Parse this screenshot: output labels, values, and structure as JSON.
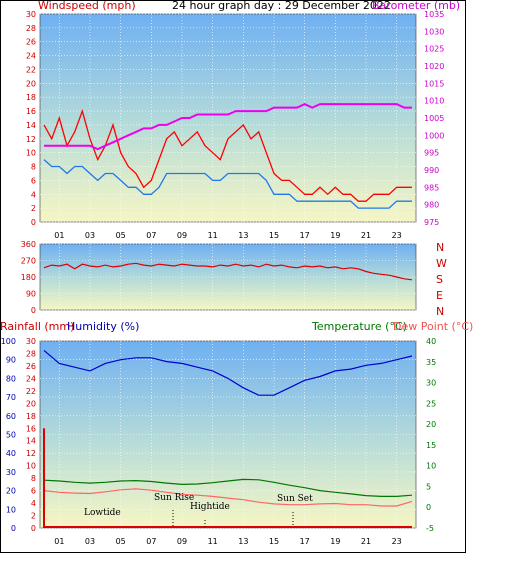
{
  "labels": {
    "title": "24 hour graph day : 29 December 2022",
    "windspeed": "Windspeed (mph)",
    "barometer": "Barometer (mb)",
    "rainfall": "Rainfall (mm)",
    "humidity": "Humidity (%)",
    "temperature": "Temperature (°C)",
    "dewpoint": "Dew Point (°C)",
    "compass": [
      "N",
      "W",
      "S",
      "E",
      "N"
    ]
  },
  "annotations": [
    "Lowtide",
    "Sun Rise",
    "Hightide",
    "Sun Set"
  ],
  "colors": {
    "gust": "#ff0000",
    "average": "#2277ee",
    "barometer": "#ee00ee",
    "direction": "#dd0000",
    "humidity": "#0000cc",
    "temperature": "#007700",
    "dewpoint": "#ff6666",
    "rainfall": "#dd0000"
  },
  "chart_data": [
    {
      "type": "line",
      "title": "24 hour graph day : 29 December 2022",
      "xlabel": "",
      "ylabel": "Windspeed (mph)",
      "y2label": "Barometer (mb)",
      "ylim": [
        0,
        30
      ],
      "y2lim": [
        975,
        1035
      ],
      "x_ticks": [
        "01",
        "03",
        "05",
        "07",
        "09",
        "11",
        "13",
        "15",
        "17",
        "19",
        "21",
        "23"
      ],
      "y_ticks": [
        0,
        2,
        4,
        6,
        8,
        10,
        12,
        14,
        16,
        18,
        20,
        22,
        24,
        26,
        28,
        30
      ],
      "y2_ticks": [
        975,
        980,
        985,
        990,
        995,
        1000,
        1005,
        1010,
        1015,
        1020,
        1025,
        1030,
        1035
      ],
      "x": [
        0,
        0.5,
        1,
        1.5,
        2,
        2.5,
        3,
        3.5,
        4,
        4.5,
        5,
        5.5,
        6,
        6.5,
        7,
        7.5,
        8,
        8.5,
        9,
        9.5,
        10,
        10.5,
        11,
        11.5,
        12,
        12.5,
        13,
        13.5,
        14,
        14.5,
        15,
        15.5,
        16,
        16.5,
        17,
        17.5,
        18,
        18.5,
        19,
        19.5,
        20,
        20.5,
        21,
        21.5,
        22,
        22.5,
        23,
        23.5,
        24
      ],
      "series": [
        {
          "name": "gust",
          "axis": "left",
          "values": [
            14,
            12,
            15,
            11,
            13,
            16,
            12,
            9,
            11,
            14,
            10,
            8,
            7,
            5,
            6,
            9,
            12,
            13,
            11,
            12,
            13,
            11,
            10,
            9,
            12,
            13,
            14,
            12,
            13,
            10,
            7,
            6,
            6,
            5,
            4,
            4,
            5,
            4,
            5,
            4,
            4,
            3,
            3,
            4,
            4,
            4,
            5,
            5,
            5
          ]
        },
        {
          "name": "average",
          "axis": "left",
          "values": [
            9,
            8,
            8,
            7,
            8,
            8,
            7,
            6,
            7,
            7,
            6,
            5,
            5,
            4,
            4,
            5,
            7,
            7,
            7,
            7,
            7,
            7,
            6,
            6,
            7,
            7,
            7,
            7,
            7,
            6,
            4,
            4,
            4,
            3,
            3,
            3,
            3,
            3,
            3,
            3,
            3,
            2,
            2,
            2,
            2,
            2,
            3,
            3,
            3
          ]
        },
        {
          "name": "barometer",
          "axis": "right",
          "values": [
            997,
            997,
            997,
            997,
            997,
            997,
            997,
            996,
            997,
            998,
            999,
            1000,
            1001,
            1002,
            1002,
            1003,
            1003,
            1004,
            1005,
            1005,
            1006,
            1006,
            1006,
            1006,
            1006,
            1007,
            1007,
            1007,
            1007,
            1007,
            1008,
            1008,
            1008,
            1008,
            1009,
            1008,
            1009,
            1009,
            1009,
            1009,
            1009,
            1009,
            1009,
            1009,
            1009,
            1009,
            1009,
            1008,
            1008
          ]
        }
      ]
    },
    {
      "type": "line",
      "ylabel": "",
      "ylim": [
        0,
        360
      ],
      "x_ticks": [
        "01",
        "03",
        "05",
        "07",
        "09",
        "11",
        "13",
        "15",
        "17",
        "19",
        "21",
        "23"
      ],
      "y_ticks": [
        0,
        90,
        180,
        270,
        360
      ],
      "x": [
        0,
        0.5,
        1,
        1.5,
        2,
        2.5,
        3,
        3.5,
        4,
        4.5,
        5,
        5.5,
        6,
        6.5,
        7,
        7.5,
        8,
        8.5,
        9,
        9.5,
        10,
        10.5,
        11,
        11.5,
        12,
        12.5,
        13,
        13.5,
        14,
        14.5,
        15,
        15.5,
        16,
        16.5,
        17,
        17.5,
        18,
        18.5,
        19,
        19.5,
        20,
        20.5,
        21,
        21.5,
        22,
        22.5,
        23,
        23.5,
        24
      ],
      "series": [
        {
          "name": "direction",
          "values": [
            230,
            245,
            240,
            250,
            225,
            250,
            240,
            235,
            245,
            235,
            240,
            250,
            255,
            245,
            240,
            250,
            245,
            240,
            250,
            245,
            240,
            240,
            235,
            245,
            240,
            250,
            240,
            245,
            235,
            250,
            240,
            245,
            235,
            230,
            240,
            235,
            240,
            230,
            235,
            225,
            230,
            225,
            210,
            200,
            195,
            190,
            180,
            170,
            165
          ]
        }
      ]
    },
    {
      "type": "line",
      "ylabel": "Humidity (%)",
      "y2label": "Temperature (°C)",
      "y3label": "Rainfall (mm)",
      "ylim": [
        0,
        100
      ],
      "y2lim": [
        -5,
        40
      ],
      "y3lim": [
        0,
        30
      ],
      "x_ticks": [
        "01",
        "03",
        "05",
        "07",
        "09",
        "11",
        "13",
        "15",
        "17",
        "19",
        "21",
        "23"
      ],
      "y_ticks": [
        0,
        10,
        20,
        30,
        40,
        50,
        60,
        70,
        80,
        90,
        100
      ],
      "y2_ticks": [
        -5,
        0,
        5,
        10,
        15,
        20,
        25,
        30,
        35,
        40
      ],
      "y3_ticks": [
        0,
        2,
        4,
        6,
        8,
        10,
        12,
        14,
        16,
        18,
        20,
        22,
        24,
        26,
        28,
        30
      ],
      "x": [
        0,
        1,
        2,
        3,
        4,
        5,
        6,
        7,
        8,
        9,
        10,
        11,
        12,
        13,
        14,
        15,
        16,
        17,
        18,
        19,
        20,
        21,
        22,
        23,
        24
      ],
      "series": [
        {
          "name": "humidity",
          "axis": "left",
          "values": [
            95,
            88,
            86,
            84,
            88,
            90,
            91,
            91,
            89,
            88,
            86,
            84,
            80,
            75,
            71,
            71,
            75,
            79,
            81,
            84,
            85,
            87,
            88,
            90,
            92
          ]
        },
        {
          "name": "temperature",
          "axis": "right",
          "values": [
            6.5,
            6.3,
            6.0,
            5.8,
            6.0,
            6.3,
            6.4,
            6.2,
            5.8,
            5.5,
            5.6,
            5.9,
            6.3,
            6.7,
            6.6,
            6.0,
            5.3,
            4.7,
            4.0,
            3.6,
            3.2,
            2.8,
            2.6,
            2.6,
            2.9
          ]
        },
        {
          "name": "dewpoint",
          "axis": "right",
          "values": [
            4.0,
            3.6,
            3.4,
            3.3,
            3.7,
            4.2,
            4.4,
            4.1,
            3.6,
            3.1,
            2.9,
            2.6,
            2.2,
            1.8,
            1.2,
            0.8,
            0.6,
            0.6,
            0.8,
            0.9,
            0.6,
            0.6,
            0.3,
            0.3,
            1.4
          ]
        },
        {
          "name": "rainfall",
          "axis": "rainfall",
          "values": [
            16,
            0,
            0,
            0,
            0,
            0,
            0,
            0,
            0,
            0,
            0,
            0,
            0,
            0,
            0,
            0,
            0,
            0,
            0,
            0,
            0,
            0,
            0,
            0,
            0
          ]
        }
      ]
    }
  ]
}
